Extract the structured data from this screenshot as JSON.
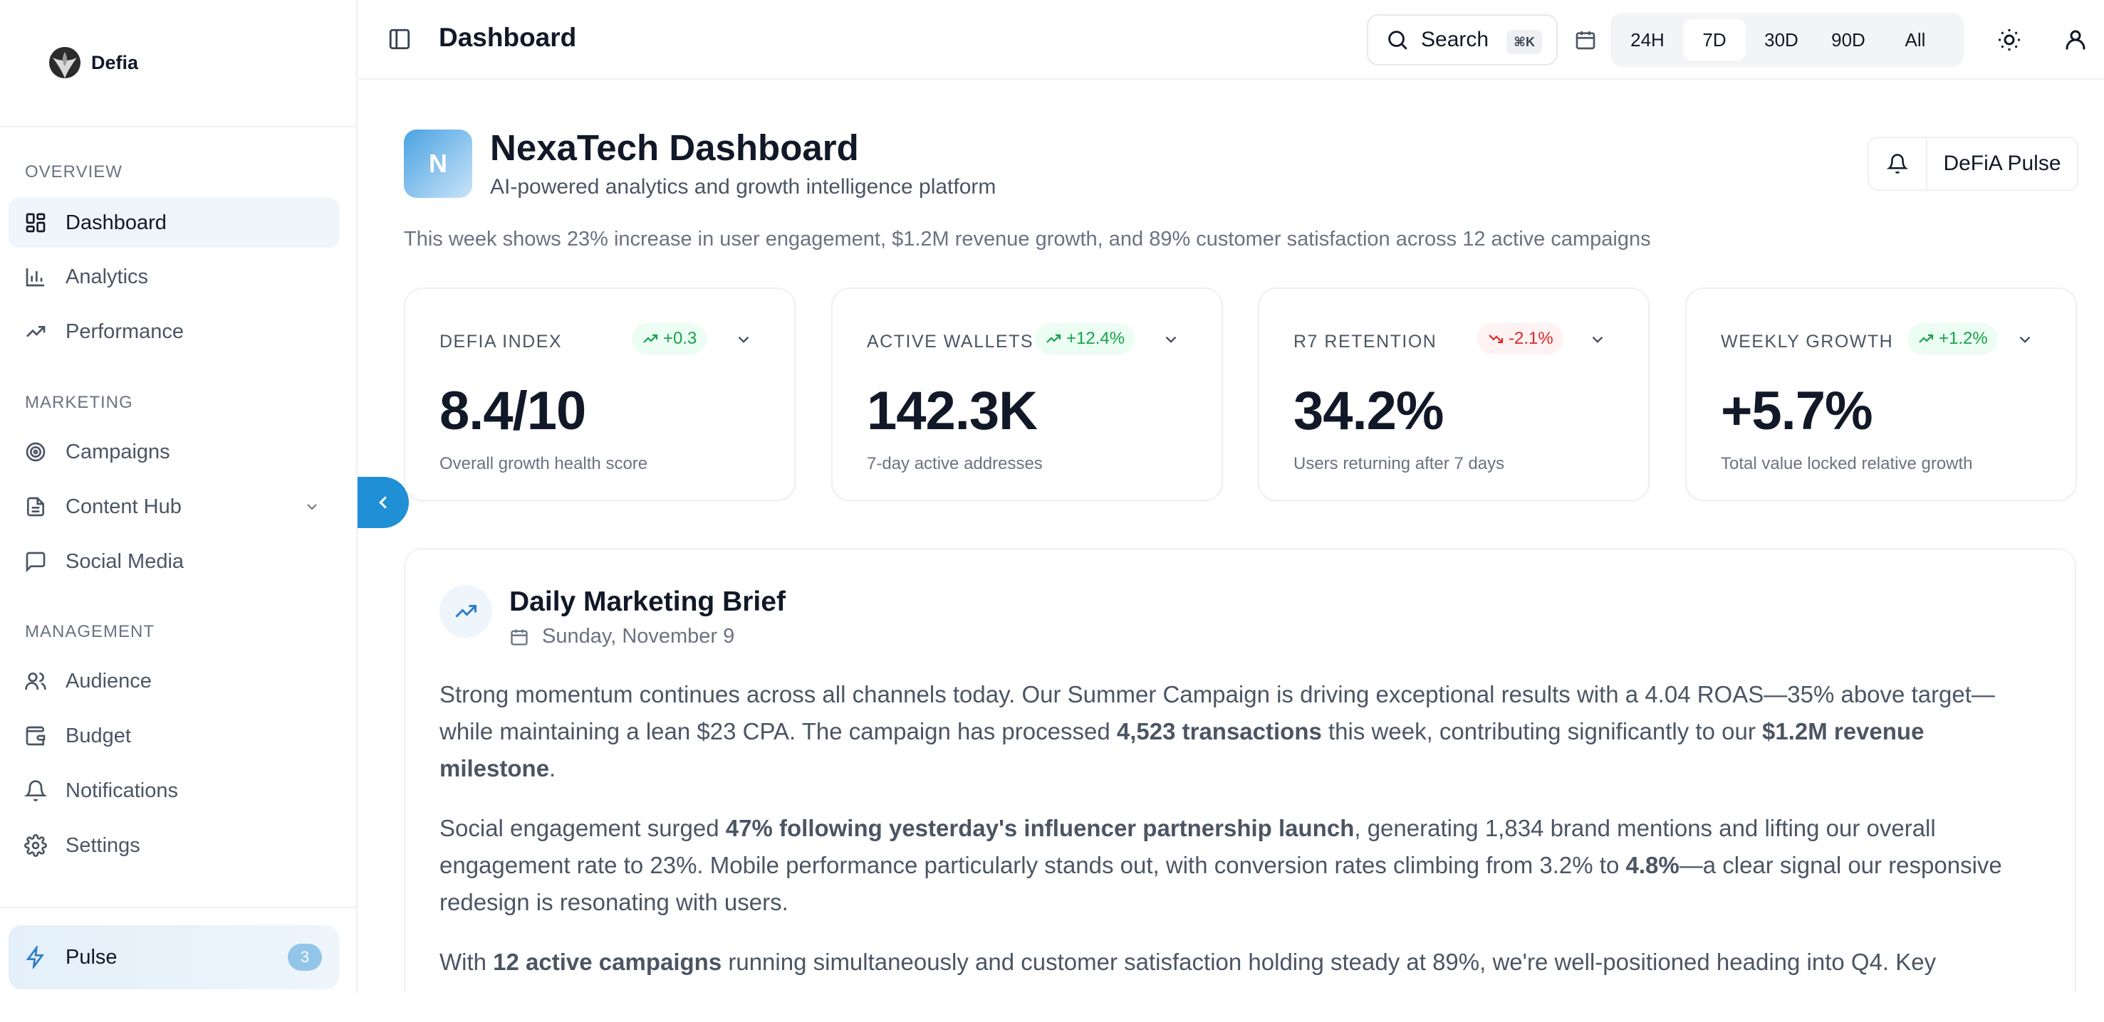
{
  "brand": {
    "name": "Defia"
  },
  "sidebar": {
    "sections": [
      {
        "label": "OVERVIEW"
      },
      {
        "label": "MARKETING"
      },
      {
        "label": "MANAGEMENT"
      }
    ],
    "items": [
      {
        "label": "Dashboard",
        "icon": "dashboard-icon",
        "active": true
      },
      {
        "label": "Analytics",
        "icon": "bar-chart-icon"
      },
      {
        "label": "Performance",
        "icon": "trending-up-icon"
      },
      {
        "label": "Campaigns",
        "icon": "target-icon"
      },
      {
        "label": "Content Hub",
        "icon": "document-icon"
      },
      {
        "label": "Social Media",
        "icon": "message-icon"
      },
      {
        "label": "Audience",
        "icon": "users-icon"
      },
      {
        "label": "Budget",
        "icon": "wallet-icon"
      },
      {
        "label": "Notifications",
        "icon": "bell-icon"
      },
      {
        "label": "Settings",
        "icon": "gear-icon"
      }
    ],
    "pulse": {
      "label": "Pulse",
      "badge": "3",
      "icon": "lightning-icon"
    }
  },
  "topbar": {
    "title": "Dashboard",
    "search": {
      "label": "Search",
      "shortcut": "⌘K"
    },
    "ranges": [
      "24H",
      "7D",
      "30D",
      "90D",
      "All"
    ],
    "active_range": "7D"
  },
  "header": {
    "avatar_letter": "N",
    "title": "NexaTech Dashboard",
    "subtitle": "AI-powered analytics and growth intelligence platform",
    "pulse_button": "DeFiA Pulse",
    "summary": "This week shows 23% increase in user engagement, $1.2M revenue growth, and 89% customer satisfaction across 12 active campaigns"
  },
  "metrics": [
    {
      "label": "DEFIA INDEX",
      "change": "+0.3",
      "trend": "up",
      "value": "8.4/10",
      "description": "Overall growth health score"
    },
    {
      "label": "ACTIVE WALLETS",
      "change": "+12.4%",
      "trend": "up",
      "value": "142.3K",
      "description": "7-day active addresses"
    },
    {
      "label": "R7 RETENTION",
      "change": "-2.1%",
      "trend": "down",
      "value": "34.2%",
      "description": "Users returning after 7 days"
    },
    {
      "label": "WEEKLY GROWTH",
      "change": "+1.2%",
      "trend": "up",
      "value": "+5.7%",
      "description": "Total value locked relative growth"
    }
  ],
  "brief": {
    "title": "Daily Marketing Brief",
    "date": "Sunday, November 9",
    "paragraphs": [
      [
        "Strong momentum continues across all channels today. Our Summer Campaign is driving exceptional results with a 4.04 ROAS—35% above target—while maintaining a lean $23 CPA. The campaign has processed ",
        "**4,523 transactions",
        " this week, contributing significantly to our ",
        "**$1.2M revenue milestone",
        "."
      ],
      [
        "Social engagement surged ",
        "**47% following yesterday's influencer partnership launch",
        ", generating 1,834 brand mentions and lifting our overall engagement rate to 23%. Mobile performance particularly stands out, with conversion rates climbing from 3.2% to ",
        "**4.8%",
        "—a clear signal our responsive redesign is resonating with users."
      ],
      [
        "With ",
        "**12 active campaigns",
        " running simultaneously and customer satisfaction holding steady at 89%, we're well-positioned heading into Q4. Key"
      ]
    ]
  },
  "colors": {
    "accent": "#1f8fd6",
    "positive": "#16a34a",
    "negative": "#dc2626"
  }
}
